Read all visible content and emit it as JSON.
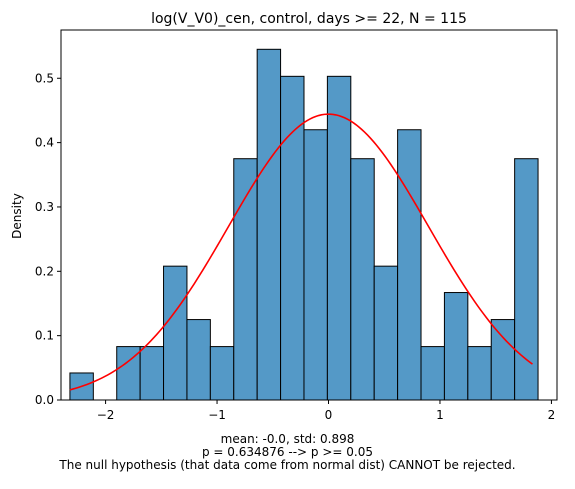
{
  "chart_data": {
    "type": "bar",
    "title": "log(V_V0)_cen, control, days >= 22, N = 115",
    "xlabel": "",
    "ylabel": "Density",
    "xlim": [
      -2.4,
      2.05
    ],
    "ylim": [
      0,
      0.575
    ],
    "x_ticks": [
      -2,
      -1,
      0,
      1,
      2
    ],
    "x_tick_labels": [
      "−2",
      "−1",
      "0",
      "1",
      "2"
    ],
    "y_ticks": [
      0.0,
      0.1,
      0.2,
      0.3,
      0.4,
      0.5
    ],
    "y_tick_labels": [
      "0.0",
      "0.1",
      "0.2",
      "0.3",
      "0.4",
      "0.5"
    ],
    "grid": false,
    "bin_edges": [
      -2.32,
      -2.11,
      -1.9,
      -1.69,
      -1.48,
      -1.27,
      -1.06,
      -0.85,
      -0.64,
      -0.43,
      -0.22,
      -0.01,
      0.2,
      0.41,
      0.62,
      0.83,
      1.04,
      1.25,
      1.46,
      1.67,
      1.88
    ],
    "densities": [
      0.042,
      0.0,
      0.083,
      0.083,
      0.208,
      0.125,
      0.083,
      0.375,
      0.545,
      0.503,
      0.42,
      0.503,
      0.375,
      0.208,
      0.42,
      0.083,
      0.167,
      0.083,
      0.125,
      0.375
    ],
    "bar_color": "#5499c7",
    "edge_color": "#000000",
    "normal_fit": {
      "mean": 0.0,
      "std": 0.898,
      "x_range": [
        -2.32,
        1.83
      ],
      "color": "#ff0000"
    },
    "annotation_lines": [
      "mean: -0.0, std: 0.898",
      "p = 0.634876 --> p >= 0.05",
      "The null hypothesis (that data come from normal dist) CANNOT be rejected."
    ]
  }
}
